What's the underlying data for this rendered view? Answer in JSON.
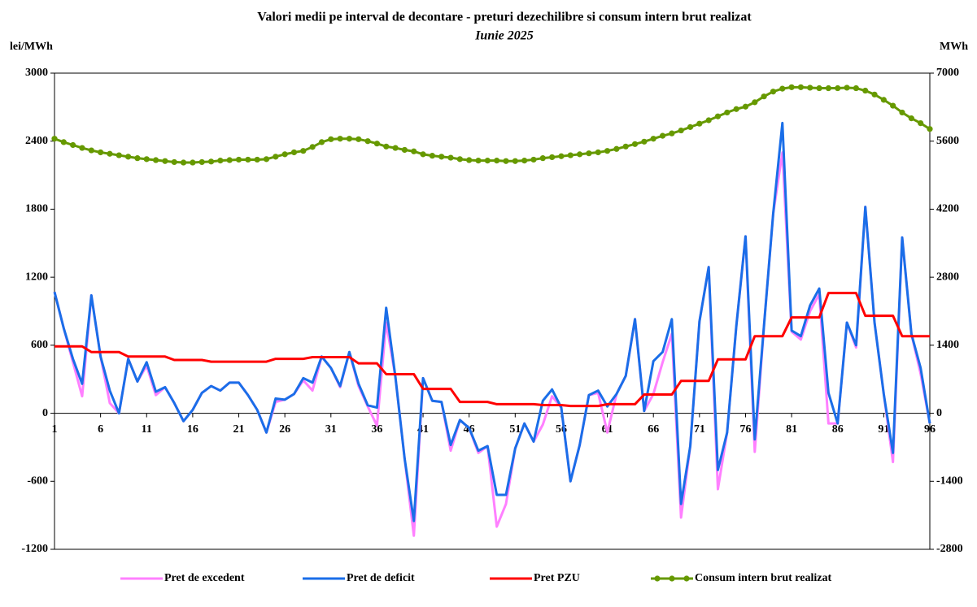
{
  "chart_data": {
    "type": "line",
    "title": "Valori medii pe interval de decontare - preturi dezechilibre si consum intern brut realizat",
    "subtitle": "Iunie 2025",
    "ylabel": "lei/MWh",
    "y2label": "MWh",
    "categories": [
      1,
      null,
      null,
      null,
      null,
      6,
      null,
      null,
      null,
      null,
      11,
      null,
      null,
      null,
      null,
      16,
      null,
      null,
      null,
      null,
      21,
      null,
      null,
      null,
      null,
      26,
      null,
      null,
      null,
      null,
      31,
      null,
      null,
      null,
      null,
      36,
      null,
      null,
      null,
      null,
      41,
      null,
      null,
      null,
      null,
      46,
      null,
      null,
      null,
      null,
      51,
      null,
      null,
      null,
      null,
      56,
      null,
      null,
      null,
      null,
      61,
      null,
      null,
      null,
      null,
      66,
      null,
      null,
      null,
      null,
      71,
      null,
      null,
      null,
      null,
      76,
      null,
      null,
      null,
      null,
      81,
      null,
      null,
      null,
      null,
      86,
      null,
      null,
      null,
      null,
      91,
      null,
      null,
      null,
      null,
      96
    ],
    "ylim": [
      -1200,
      3000
    ],
    "yticks": [
      -1200,
      -600,
      0,
      600,
      1200,
      1800,
      2400,
      3000
    ],
    "y2lim": [
      -2800,
      7000
    ],
    "y2ticks": [
      -2800,
      -1400,
      0,
      1400,
      2800,
      4200,
      5600,
      7000
    ],
    "grid": false,
    "legend": "bottom",
    "series": [
      {
        "name": "Pret de excedent",
        "color": "#ff80ff",
        "values": [
          1070,
          750,
          450,
          150,
          1040,
          500,
          90,
          0,
          480,
          280,
          420,
          160,
          230,
          90,
          -70,
          30,
          180,
          240,
          200,
          270,
          270,
          160,
          30,
          -170,
          100,
          120,
          170,
          290,
          200,
          500,
          400,
          230,
          540,
          240,
          60,
          -110,
          800,
          320,
          -400,
          -1080,
          310,
          110,
          100,
          -330,
          -60,
          -130,
          -350,
          -290,
          -1000,
          -800,
          -310,
          -90,
          -250,
          -100,
          150,
          50,
          -600,
          -280,
          160,
          180,
          -170,
          170,
          330,
          830,
          20,
          170,
          450,
          700,
          -920,
          -290,
          810,
          1290,
          -670,
          -170,
          770,
          1560,
          -340,
          770,
          1760,
          2300,
          720,
          650,
          900,
          1050,
          -90,
          -90,
          800,
          580,
          1820,
          800,
          170,
          -430,
          1550,
          700,
          350,
          -90
        ]
      },
      {
        "name": "Pret de deficit",
        "color": "#1a6ee8",
        "values": [
          1070,
          750,
          480,
          260,
          1040,
          500,
          200,
          0,
          480,
          280,
          450,
          190,
          230,
          90,
          -70,
          30,
          180,
          240,
          200,
          270,
          270,
          160,
          30,
          -170,
          130,
          120,
          170,
          310,
          270,
          500,
          400,
          240,
          540,
          260,
          70,
          50,
          930,
          320,
          -400,
          -950,
          310,
          110,
          100,
          -280,
          -60,
          -130,
          -330,
          -290,
          -720,
          -720,
          -310,
          -90,
          -250,
          110,
          210,
          50,
          -600,
          -280,
          160,
          200,
          60,
          170,
          330,
          830,
          20,
          460,
          540,
          830,
          -800,
          -290,
          810,
          1290,
          -500,
          -170,
          770,
          1560,
          -230,
          770,
          1760,
          2560,
          730,
          680,
          950,
          1100,
          180,
          -90,
          800,
          600,
          1820,
          800,
          170,
          -350,
          1550,
          700,
          400,
          -90
        ]
      },
      {
        "name": "Pret PZU",
        "color": "#ff0000",
        "values": [
          590,
          590,
          590,
          590,
          540,
          540,
          540,
          540,
          500,
          500,
          500,
          500,
          500,
          470,
          470,
          470,
          470,
          455,
          455,
          455,
          455,
          455,
          455,
          455,
          480,
          480,
          480,
          480,
          495,
          495,
          495,
          495,
          495,
          440,
          440,
          440,
          345,
          345,
          345,
          345,
          215,
          215,
          215,
          215,
          100,
          100,
          100,
          100,
          80,
          80,
          80,
          80,
          80,
          72,
          72,
          72,
          64,
          64,
          64,
          64,
          80,
          80,
          80,
          80,
          165,
          165,
          165,
          165,
          285,
          285,
          285,
          285,
          475,
          475,
          475,
          475,
          680,
          680,
          680,
          680,
          845,
          845,
          845,
          845,
          1060,
          1060,
          1060,
          1060,
          860,
          860,
          860,
          860,
          680,
          680,
          680,
          680
        ]
      },
      {
        "name": "Consum intern brut realizat",
        "color": "#669900",
        "axis": "y2",
        "markers": true,
        "values": [
          5650,
          5580,
          5520,
          5460,
          5410,
          5370,
          5340,
          5310,
          5280,
          5250,
          5230,
          5210,
          5190,
          5170,
          5160,
          5160,
          5170,
          5180,
          5200,
          5210,
          5220,
          5220,
          5220,
          5230,
          5280,
          5330,
          5370,
          5400,
          5480,
          5580,
          5640,
          5650,
          5650,
          5640,
          5600,
          5550,
          5490,
          5460,
          5420,
          5390,
          5330,
          5300,
          5280,
          5260,
          5230,
          5210,
          5200,
          5200,
          5200,
          5190,
          5190,
          5200,
          5220,
          5250,
          5270,
          5290,
          5310,
          5330,
          5350,
          5370,
          5400,
          5440,
          5490,
          5540,
          5590,
          5650,
          5710,
          5760,
          5820,
          5890,
          5960,
          6030,
          6110,
          6190,
          6260,
          6310,
          6400,
          6520,
          6620,
          6680,
          6710,
          6710,
          6700,
          6690,
          6690,
          6690,
          6700,
          6690,
          6640,
          6560,
          6450,
          6330,
          6190,
          6070,
          5970,
          5850
        ]
      }
    ]
  }
}
